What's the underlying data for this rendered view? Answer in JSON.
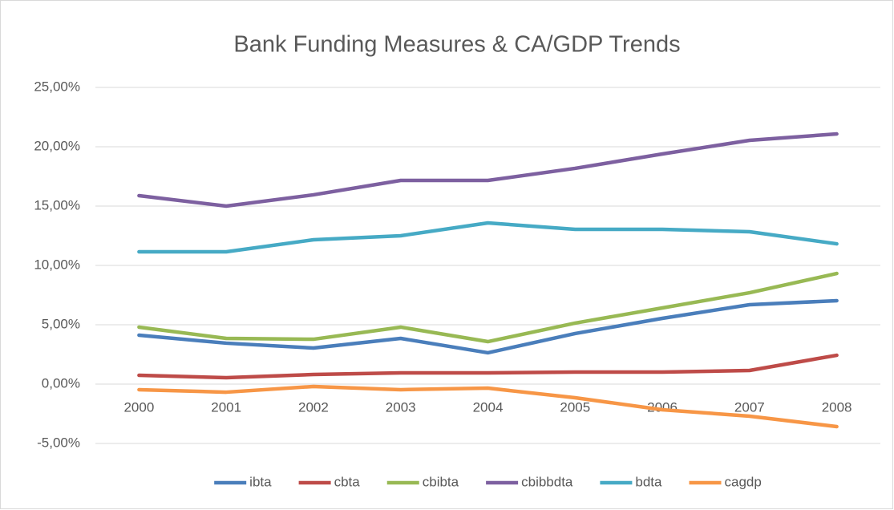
{
  "chart_data": {
    "type": "line",
    "title": "Bank Funding Measures & CA/GDP Trends",
    "categories": [
      "2000",
      "2001",
      "2002",
      "2003",
      "2004",
      "2005",
      "2006",
      "2007",
      "2008"
    ],
    "series": [
      {
        "name": "ibta",
        "color": "#4a7ebb",
        "values": [
          4.12,
          3.45,
          3.04,
          3.85,
          2.64,
          4.26,
          5.54,
          6.69,
          7.03
        ]
      },
      {
        "name": "cbta",
        "color": "#be4b48",
        "values": [
          0.74,
          0.54,
          0.81,
          0.95,
          0.95,
          1.01,
          1.01,
          1.15,
          2.43
        ]
      },
      {
        "name": "cbibta",
        "color": "#98b954",
        "values": [
          4.8,
          3.85,
          3.78,
          4.8,
          3.58,
          5.14,
          6.42,
          7.7,
          9.32
        ]
      },
      {
        "name": "cbibbdta",
        "color": "#7d60a0",
        "values": [
          15.88,
          15.0,
          15.95,
          17.16,
          17.16,
          18.18,
          19.39,
          20.54,
          21.08
        ]
      },
      {
        "name": "bdta",
        "color": "#46aac5",
        "values": [
          11.15,
          11.15,
          12.16,
          12.5,
          13.58,
          13.04,
          13.04,
          12.84,
          11.82
        ]
      },
      {
        "name": "cagdp",
        "color": "#f79646",
        "values": [
          -0.47,
          -0.68,
          -0.2,
          -0.47,
          -0.34,
          -1.15,
          -2.16,
          -2.7,
          -3.58
        ]
      }
    ],
    "ylim": [
      -5,
      25
    ],
    "yticks": [
      {
        "value": -5,
        "label": "-5,00%"
      },
      {
        "value": 0,
        "label": "0,00%"
      },
      {
        "value": 5,
        "label": "5,00%"
      },
      {
        "value": 10,
        "label": "10,00%"
      },
      {
        "value": 15,
        "label": "15,00%"
      },
      {
        "value": 20,
        "label": "20,00%"
      },
      {
        "value": 25,
        "label": "25,00%"
      }
    ],
    "grid": true,
    "legend": "bottom"
  }
}
